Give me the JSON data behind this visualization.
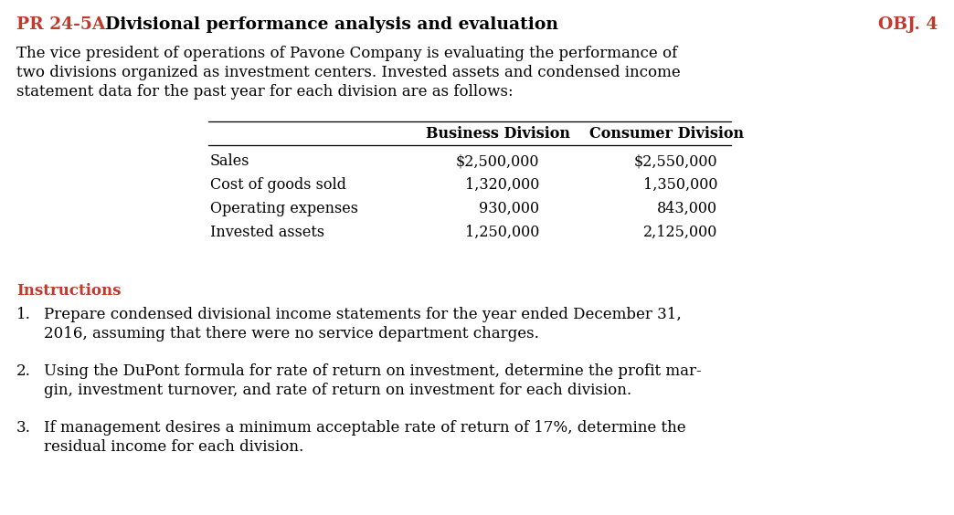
{
  "title_prefix": "PR 24-5A",
  "title_text": "Divisional performance analysis and evaluation",
  "obj_label": "OBJ. 4",
  "title_color": "#c0392b",
  "obj_color": "#c0392b",
  "text_color": "#000000",
  "bg_color": "#ffffff",
  "body_lines": [
    "The vice president of operations of Pavone Company is evaluating the performance of",
    "two divisions organized as investment centers. Invested assets and condensed income",
    "statement data for the past year for each division are as follows:"
  ],
  "col_header1": "Business Division",
  "col_header2": "Consumer Division",
  "table_rows": [
    [
      "Sales",
      "$2,500,000",
      "$2,550,000"
    ],
    [
      "Cost of goods sold",
      "1,320,000",
      "1,350,000"
    ],
    [
      "Operating expenses",
      "930,000",
      "843,000"
    ],
    [
      "Invested assets",
      "1,250,000",
      "2,125,000"
    ]
  ],
  "instructions_label": "Instructions",
  "instructions": [
    [
      "1.",
      "Prepare condensed divisional income statements for the year ended December 31,",
      "2016, assuming that there were no service department charges."
    ],
    [
      "2.",
      "Using the DuPont formula for rate of return on investment, determine the profit mar-",
      "gin, investment turnover, and rate of return on investment for each division."
    ],
    [
      "3.",
      "If management desires a minimum acceptable rate of return of 17%, determine the",
      "residual income for each division."
    ]
  ],
  "fs_title": 13.5,
  "fs_body": 12.0,
  "fs_table": 11.5,
  "fs_instr": 12.0
}
